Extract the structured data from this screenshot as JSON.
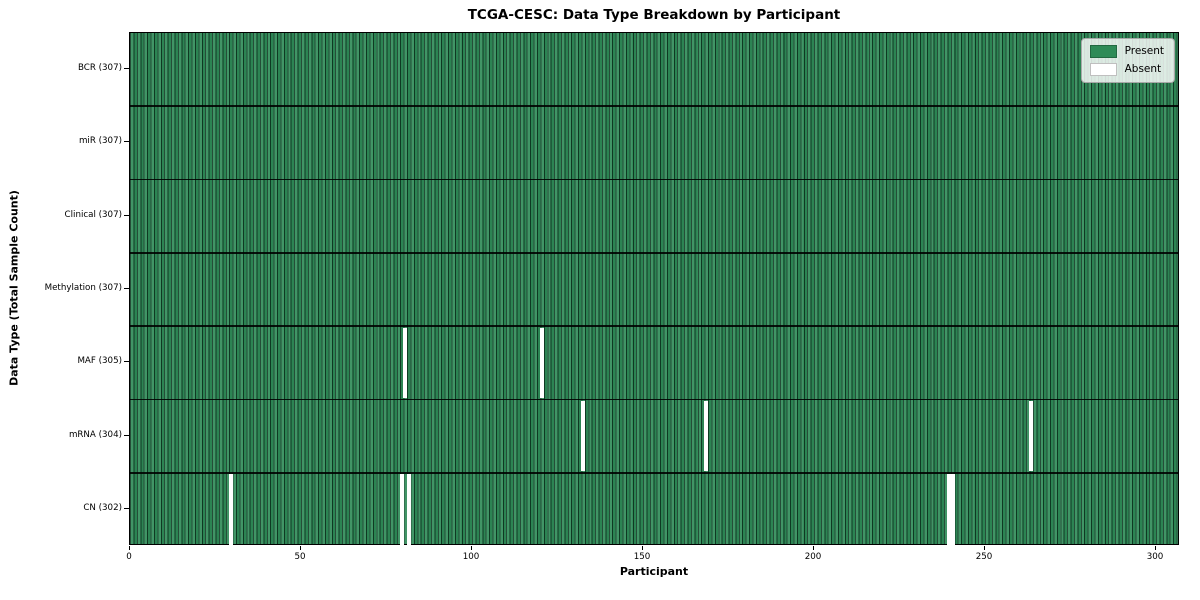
{
  "chart_data": {
    "type": "heatmap",
    "title": "TCGA-CESC: Data Type Breakdown by Participant",
    "xlabel": "Participant",
    "ylabel": "Data Type (Total Sample Count)",
    "x_ticks": [
      0,
      50,
      100,
      150,
      200,
      250,
      300
    ],
    "xlim": [
      0,
      307
    ],
    "n_participants": 307,
    "grid": "cell-edges",
    "legend_position": "upper-right",
    "legend": [
      {
        "label": "Present",
        "color": "#2e8b57"
      },
      {
        "label": "Absent",
        "color": "#ffffff"
      }
    ],
    "colors": {
      "present": "#2e8b57",
      "absent": "#ffffff",
      "cell_edge": "#0f3d24",
      "row_separator": "#000000"
    },
    "rows": [
      {
        "label": "BCR (307)",
        "data_type": "BCR",
        "present_count": 307,
        "absent_participants": []
      },
      {
        "label": "miR (307)",
        "data_type": "miR",
        "present_count": 307,
        "absent_participants": []
      },
      {
        "label": "Clinical (307)",
        "data_type": "Clinical",
        "present_count": 307,
        "absent_participants": []
      },
      {
        "label": "Methylation (307)",
        "data_type": "Methylation",
        "present_count": 307,
        "absent_participants": []
      },
      {
        "label": "MAF (305)",
        "data_type": "MAF",
        "present_count": 305,
        "absent_participants": [
          80,
          120
        ]
      },
      {
        "label": "mRNA (304)",
        "data_type": "mRNA",
        "present_count": 304,
        "absent_participants": [
          132,
          168,
          263
        ]
      },
      {
        "label": "CN (302)",
        "data_type": "CN",
        "present_count": 302,
        "absent_participants": [
          29,
          79,
          81,
          239,
          240
        ]
      }
    ]
  }
}
